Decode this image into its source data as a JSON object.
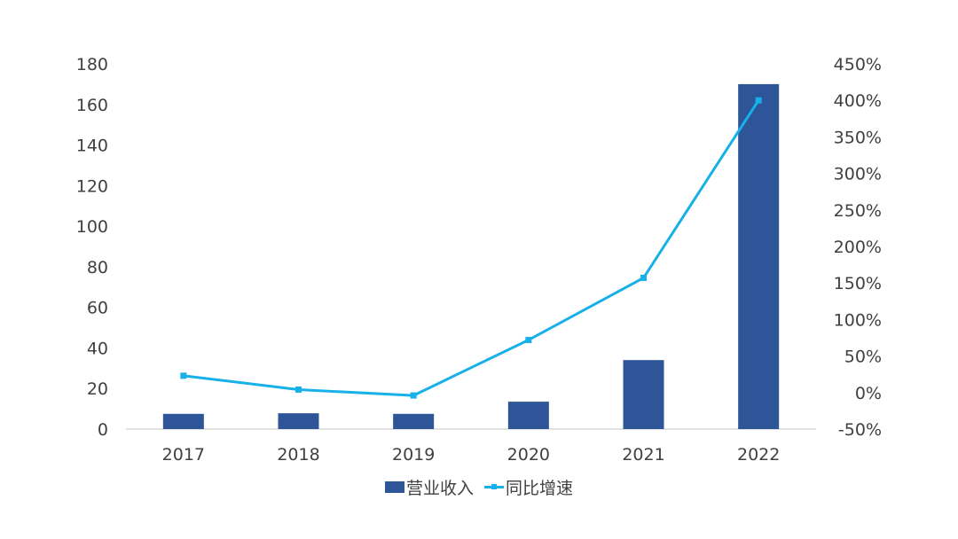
{
  "chart_data": {
    "type": "bar",
    "categories": [
      "2017",
      "2018",
      "2019",
      "2020",
      "2021",
      "2022"
    ],
    "series": [
      {
        "name": "营业收入",
        "type": "bar",
        "axis": "left",
        "color": "#2e5597",
        "values": [
          7.5,
          7.8,
          7.5,
          13.5,
          34,
          170
        ]
      },
      {
        "name": "同比增速",
        "type": "line",
        "axis": "right",
        "color": "#17b0e8",
        "values": [
          23,
          4,
          -4,
          72,
          157,
          400
        ]
      }
    ],
    "y_left": {
      "ticks": [
        "0",
        "20",
        "40",
        "60",
        "80",
        "100",
        "120",
        "140",
        "160",
        "180"
      ],
      "ylim": [
        0,
        180
      ]
    },
    "y_right": {
      "ticks": [
        "-50%",
        "0%",
        "50%",
        "100%",
        "150%",
        "200%",
        "250%",
        "300%",
        "350%",
        "400%",
        "450%"
      ],
      "ylim": [
        -50,
        450
      ]
    },
    "legend": [
      "营业收入",
      "同比增速"
    ],
    "legend_position": "bottom",
    "grid": false
  }
}
